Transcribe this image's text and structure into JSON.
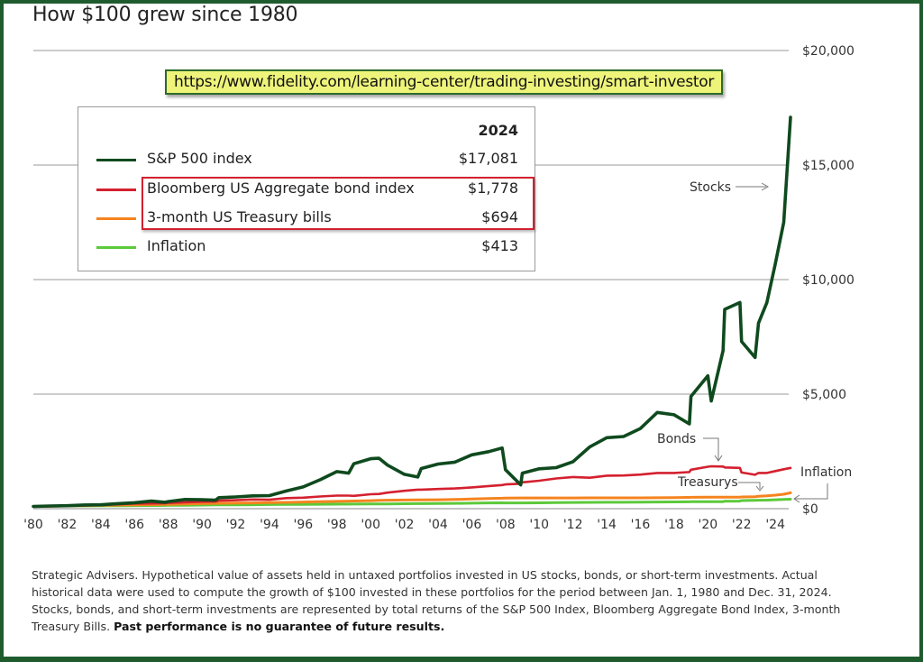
{
  "title": "How $100 grew since 1980",
  "source_url": "https://www.fidelity.com/learning-center/trading-investing/smart-investor",
  "legend": {
    "header": "2024",
    "rows": [
      {
        "label": "S&P 500 index",
        "value": "$17,081",
        "color": "#0f4a1e"
      },
      {
        "label": "Bloomberg US Aggregate bond index",
        "value": "$1,778",
        "color": "#d4202f"
      },
      {
        "label": "3-month US Treasury bills",
        "value": "$694",
        "color": "#f5841f"
      },
      {
        "label": "Inflation",
        "value": "$413",
        "color": "#5cc93a"
      }
    ]
  },
  "annotations": {
    "stocks": "Stocks",
    "bonds": "Bonds",
    "treasurys": "Treasurys",
    "inflation": "Inflation"
  },
  "footnote": {
    "text": "Strategic Advisers. Hypothetical value of assets held in untaxed portfolios invested in US stocks, bonds, or short-term investments. Actual historical data were used to compute the growth of $100 invested in these portfolios for the period between Jan. 1, 1980 and Dec. 31, 2024. Stocks, bonds, and short-term investments are represented by total returns of the S&P 500 Index, Bloomberg Aggregate Bond Index, 3-month Treasury Bills.",
    "bold": "Past performance is no guarantee of future results."
  },
  "chart_data": {
    "type": "line",
    "title": "How $100 grew since 1980",
    "xlabel": "",
    "ylabel": "",
    "xlim": [
      1980,
      2024.9
    ],
    "ylim": [
      0,
      20000
    ],
    "grid": true,
    "legend_position": "top-left",
    "x_ticks": [
      "'80",
      "'82",
      "'84",
      "'86",
      "'88",
      "'90",
      "'92",
      "'94",
      "'96",
      "'98",
      "'00",
      "'02",
      "'04",
      "'06",
      "'08",
      "'10",
      "'12",
      "'14",
      "'16",
      "'18",
      "'20",
      "'22",
      "'24"
    ],
    "y_ticks": [
      "$0",
      "$5,000",
      "$10,000",
      "$15,000",
      "$20,000"
    ],
    "y_tick_values": [
      0,
      5000,
      10000,
      15000,
      20000
    ],
    "x": [
      1980,
      1981,
      1982,
      1983,
      1984,
      1985,
      1986,
      1987,
      1987.8,
      1988,
      1989,
      1990,
      1990.8,
      1991,
      1992,
      1993,
      1994,
      1995,
      1996,
      1997,
      1998,
      1998.7,
      1999,
      2000,
      2000.5,
      2001,
      2002,
      2002.8,
      2003,
      2004,
      2005,
      2006,
      2007,
      2007.8,
      2008,
      2008.9,
      2009,
      2010,
      2011,
      2012,
      2013,
      2014,
      2015,
      2016,
      2017,
      2018,
      2018.9,
      2019,
      2020,
      2020.2,
      2020.9,
      2021,
      2021.9,
      2022,
      2022.8,
      2023,
      2023.5,
      2024,
      2024.5,
      2024.9
    ],
    "series": [
      {
        "name": "S&P 500 index",
        "color": "#0f4a1e",
        "values": [
          100,
          120,
          130,
          160,
          170,
          220,
          260,
          330,
          280,
          310,
          400,
          390,
          370,
          480,
          510,
          560,
          570,
          770,
          950,
          1260,
          1620,
          1550,
          1960,
          2180,
          2200,
          1900,
          1500,
          1380,
          1750,
          1950,
          2030,
          2350,
          2490,
          2650,
          1700,
          1040,
          1550,
          1740,
          1790,
          2050,
          2700,
          3100,
          3150,
          3500,
          4200,
          4100,
          3700,
          4900,
          5800,
          4700,
          6900,
          8700,
          9000,
          7300,
          6600,
          8100,
          9000,
          10700,
          12500,
          17081
        ]
      },
      {
        "name": "Bloomberg US Aggregate bond index",
        "color": "#d4202f",
        "values": [
          100,
          105,
          130,
          140,
          160,
          190,
          225,
          230,
          235,
          250,
          280,
          305,
          310,
          350,
          370,
          400,
          390,
          460,
          480,
          530,
          570,
          570,
          560,
          630,
          640,
          700,
          780,
          830,
          830,
          860,
          880,
          930,
          990,
          1030,
          1060,
          1090,
          1150,
          1220,
          1320,
          1380,
          1350,
          1440,
          1450,
          1490,
          1560,
          1560,
          1600,
          1700,
          1830,
          1850,
          1840,
          1800,
          1780,
          1580,
          1480,
          1560,
          1560,
          1640,
          1720,
          1778
        ]
      },
      {
        "name": "3-month US Treasury bills",
        "color": "#f5841f",
        "values": [
          100,
          112,
          124,
          135,
          148,
          159,
          169,
          179,
          186,
          190,
          206,
          222,
          234,
          237,
          245,
          252,
          262,
          276,
          290,
          305,
          320,
          331,
          335,
          352,
          362,
          370,
          376,
          380,
          384,
          389,
          400,
          420,
          440,
          457,
          465,
          469,
          469,
          470,
          470,
          470,
          471,
          471,
          471,
          473,
          477,
          486,
          494,
          497,
          500,
          503,
          503,
          503,
          504,
          510,
          525,
          540,
          560,
          590,
          630,
          694
        ]
      },
      {
        "name": "Inflation",
        "color": "#5cc93a",
        "values": [
          100,
          110,
          117,
          121,
          126,
          131,
          133,
          139,
          143,
          144,
          151,
          158,
          164,
          165,
          170,
          175,
          180,
          185,
          190,
          193,
          196,
          199,
          200,
          207,
          209,
          210,
          216,
          219,
          219,
          226,
          233,
          240,
          250,
          256,
          250,
          252,
          252,
          256,
          265,
          270,
          274,
          278,
          279,
          284,
          290,
          296,
          300,
          302,
          305,
          306,
          308,
          326,
          330,
          355,
          365,
          370,
          375,
          390,
          400,
          413
        ]
      }
    ]
  }
}
